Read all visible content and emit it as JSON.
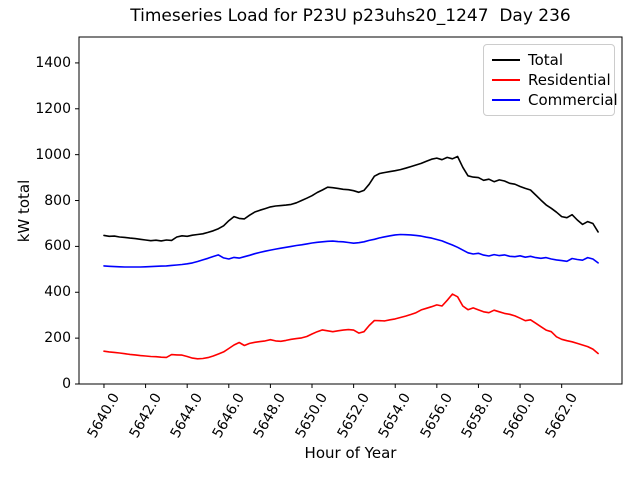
{
  "title": "Timeseries Load for P23U p23uhs20_1247  Day 236",
  "chart_data": {
    "type": "line",
    "title": "Timeseries Load for P23U p23uhs20_1247  Day 236",
    "xlabel": "Hour of Year",
    "ylabel": "kW total",
    "xlim": [
      5638.8,
      5664.9
    ],
    "ylim": [
      0,
      1513
    ],
    "grid": false,
    "legend_position": "upper right",
    "xticks": [
      5640,
      5642,
      5644,
      5646,
      5648,
      5650,
      5652,
      5654,
      5656,
      5658,
      5660,
      5662
    ],
    "xtick_labels": [
      "5640.0",
      "5642.0",
      "5644.0",
      "5646.0",
      "5648.0",
      "5650.0",
      "5652.0",
      "5654.0",
      "5656.0",
      "5658.0",
      "5660.0",
      "5662.0"
    ],
    "yticks": [
      0,
      200,
      400,
      600,
      800,
      1000,
      1200,
      1400
    ],
    "ytick_labels": [
      "0",
      "200",
      "400",
      "600",
      "800",
      "1000",
      "1200",
      "1400"
    ],
    "x": [
      5640.0,
      5640.25,
      5640.5,
      5640.75,
      5641.0,
      5641.25,
      5641.5,
      5641.75,
      5642.0,
      5642.25,
      5642.5,
      5642.75,
      5643.0,
      5643.25,
      5643.5,
      5643.75,
      5644.0,
      5644.25,
      5644.5,
      5644.75,
      5645.0,
      5645.25,
      5645.5,
      5645.75,
      5646.0,
      5646.25,
      5646.5,
      5646.75,
      5647.0,
      5647.25,
      5647.5,
      5647.75,
      5648.0,
      5648.25,
      5648.5,
      5648.75,
      5649.0,
      5649.25,
      5649.5,
      5649.75,
      5650.0,
      5650.25,
      5650.5,
      5650.75,
      5651.0,
      5651.25,
      5651.5,
      5651.75,
      5652.0,
      5652.25,
      5652.5,
      5652.75,
      5653.0,
      5653.25,
      5653.5,
      5653.75,
      5654.0,
      5654.25,
      5654.5,
      5654.75,
      5655.0,
      5655.25,
      5655.5,
      5655.75,
      5656.0,
      5656.25,
      5656.5,
      5656.75,
      5657.0,
      5657.25,
      5657.5,
      5657.75,
      5658.0,
      5658.25,
      5658.5,
      5658.75,
      5659.0,
      5659.25,
      5659.5,
      5659.75,
      5660.0,
      5660.25,
      5660.5,
      5660.75,
      5661.0,
      5661.25,
      5661.5,
      5661.75,
      5662.0,
      5662.25,
      5662.5,
      5662.75,
      5663.0,
      5663.25,
      5663.5,
      5663.75
    ],
    "series": [
      {
        "name": "Total",
        "color": "#000000",
        "values": [
          648,
          644,
          645,
          641,
          639,
          636,
          634,
          631,
          628,
          625,
          627,
          624,
          628,
          626,
          641,
          646,
          644,
          649,
          652,
          655,
          661,
          668,
          677,
          690,
          712,
          730,
          722,
          720,
          736,
          750,
          758,
          765,
          772,
          776,
          778,
          780,
          783,
          790,
          800,
          810,
          821,
          835,
          846,
          858,
          856,
          853,
          849,
          847,
          843,
          836,
          844,
          871,
          906,
          918,
          922,
          926,
          930,
          935,
          941,
          948,
          955,
          962,
          971,
          980,
          985,
          978,
          988,
          982,
          992,
          945,
          908,
          902,
          900,
          888,
          893,
          882,
          890,
          885,
          875,
          871,
          861,
          853,
          846,
          824,
          802,
          781,
          766,
          749,
          730,
          725,
          738,
          715,
          696,
          708,
          700,
          663
        ]
      },
      {
        "name": "Residential",
        "color": "#ff0000",
        "values": [
          143,
          140,
          138,
          135,
          132,
          129,
          127,
          124,
          122,
          120,
          119,
          117,
          116,
          128,
          127,
          126,
          120,
          113,
          110,
          111,
          115,
          122,
          131,
          140,
          155,
          170,
          181,
          168,
          177,
          182,
          185,
          188,
          193,
          188,
          186,
          190,
          195,
          198,
          201,
          207,
          218,
          228,
          236,
          232,
          228,
          232,
          235,
          237,
          235,
          222,
          228,
          255,
          277,
          276,
          275,
          280,
          284,
          290,
          296,
          303,
          311,
          323,
          330,
          337,
          345,
          340,
          365,
          392,
          380,
          340,
          324,
          332,
          323,
          315,
          311,
          322,
          315,
          308,
          304,
          297,
          287,
          276,
          280,
          265,
          250,
          235,
          228,
          206,
          195,
          189,
          184,
          177,
          170,
          163,
          152,
          133
        ]
      },
      {
        "name": "Commercial",
        "color": "#0000ff",
        "values": [
          515,
          513,
          512,
          511,
          510,
          510,
          510,
          510,
          511,
          512,
          513,
          514,
          515,
          517,
          519,
          521,
          524,
          528,
          534,
          541,
          548,
          556,
          563,
          550,
          545,
          552,
          549,
          555,
          561,
          568,
          574,
          579,
          584,
          588,
          592,
          596,
          600,
          604,
          607,
          611,
          615,
          618,
          620,
          622,
          623,
          621,
          620,
          617,
          614,
          616,
          620,
          626,
          631,
          637,
          642,
          646,
          650,
          652,
          651,
          650,
          648,
          645,
          640,
          636,
          630,
          624,
          615,
          606,
          596,
          584,
          572,
          567,
          570,
          562,
          558,
          564,
          560,
          563,
          557,
          555,
          559,
          553,
          557,
          551,
          548,
          551,
          545,
          541,
          538,
          535,
          547,
          543,
          540,
          551,
          545,
          528
        ]
      }
    ]
  }
}
